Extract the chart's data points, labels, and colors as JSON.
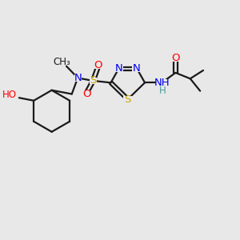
{
  "bg_color": "#e8e8e8",
  "bond_color": "#1a1a1a",
  "bond_width": 1.6,
  "colors": {
    "N": "#0000ee",
    "O": "#ff0000",
    "S": "#ccaa00",
    "H": "#4a9a9a",
    "C": "#1a1a1a"
  },
  "fs_large": 9.5,
  "fs_small": 8.5,
  "xlim": [
    0,
    10
  ],
  "ylim": [
    0,
    10
  ]
}
